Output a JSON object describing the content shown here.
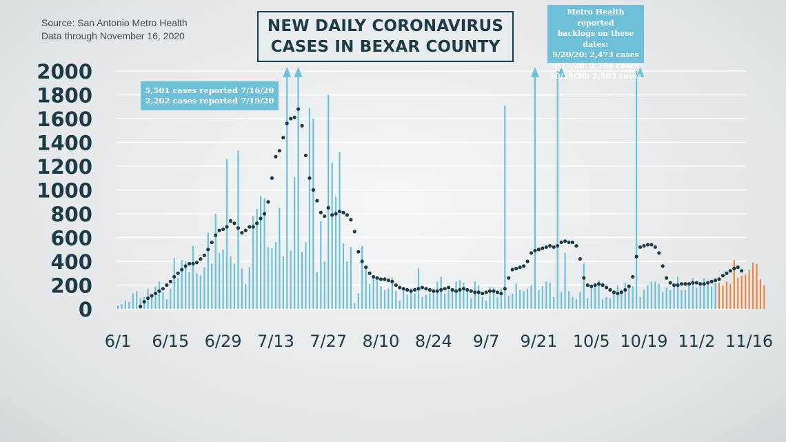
{
  "source_lines": [
    "Source: San Antonio Metro Health",
    "Data through November 16, 2020"
  ],
  "title_lines": [
    "NEW DAILY CORONAVIRUS",
    "CASES IN BEXAR COUNTY"
  ],
  "note_july_lines": [
    "5,501 cases reported 7/16/20",
    "2,202 cases reported 7/19/20"
  ],
  "note_backlog_lines": [
    "Metro Health reported",
    "backlogs on these dates:",
    "9/20/20:  2,473 cases",
    "9/27/20:  2,794 cases",
    "10/18/20:  2,583 cases"
  ],
  "colors": {
    "bar": "#6ec0d9",
    "recent_bar": "#f0843c",
    "avg_dots": "#1e3b45",
    "grid": "#ffffff",
    "text": "#1e3b45"
  },
  "chart_data": {
    "type": "bar",
    "title": "NEW DAILY CORONAVIRUS CASES IN BEXAR COUNTY",
    "xlabel": "",
    "ylabel": "",
    "ylim": [
      0,
      2000
    ],
    "y_ticks": [
      0,
      200,
      400,
      600,
      800,
      1000,
      1200,
      1400,
      1600,
      1800,
      2000
    ],
    "x_tick_labels": [
      "6/1",
      "6/15",
      "6/29",
      "7/13",
      "7/27",
      "8/10",
      "8/24",
      "9/7",
      "9/21",
      "10/5",
      "10/19",
      "11/2",
      "11/16"
    ],
    "x_tick_day_index": [
      0,
      14,
      28,
      42,
      56,
      70,
      84,
      98,
      112,
      126,
      140,
      154,
      168
    ],
    "start_date": "6/1",
    "grid": true,
    "daily_cases": [
      30,
      40,
      70,
      60,
      130,
      150,
      90,
      100,
      170,
      110,
      190,
      230,
      140,
      80,
      170,
      430,
      260,
      410,
      400,
      310,
      530,
      300,
      280,
      350,
      640,
      380,
      800,
      470,
      500,
      1260,
      440,
      380,
      1330,
      340,
      210,
      350,
      780,
      840,
      950,
      930,
      520,
      510,
      560,
      850,
      440,
      2000,
      490,
      1110,
      2000,
      480,
      560,
      1690,
      1600,
      310,
      740,
      400,
      1800,
      1230,
      940,
      1320,
      550,
      400,
      520,
      50,
      130,
      530,
      360,
      210,
      260,
      270,
      190,
      160,
      170,
      260,
      150,
      70,
      180,
      120,
      170,
      130,
      340,
      100,
      120,
      130,
      150,
      230,
      270,
      130,
      160,
      160,
      230,
      240,
      220,
      140,
      90,
      230,
      200,
      100,
      70,
      180,
      180,
      100,
      170,
      1710,
      110,
      130,
      210,
      160,
      150,
      170,
      200,
      2000,
      160,
      190,
      230,
      220,
      100,
      2000,
      140,
      470,
      150,
      100,
      80,
      140,
      380,
      90,
      190,
      210,
      240,
      80,
      100,
      90,
      140,
      200,
      160,
      220,
      200,
      190,
      2000,
      100,
      160,
      200,
      230,
      230,
      210,
      140,
      180,
      160,
      200,
      270,
      160,
      160,
      190,
      260,
      180,
      190,
      260,
      210,
      190,
      220,
      220,
      200,
      230,
      210,
      410,
      260,
      280,
      290,
      330,
      390,
      380,
      250,
      200
    ],
    "backlog_days": [
      45,
      48,
      111,
      118,
      139
    ],
    "recent_bars_start_index": 160,
    "moving_average": [
      20,
      60,
      90,
      110,
      130,
      150,
      170,
      200,
      230,
      270,
      300,
      330,
      360,
      380,
      380,
      390,
      420,
      450,
      500,
      560,
      620,
      660,
      670,
      690,
      740,
      720,
      680,
      640,
      660,
      690,
      690,
      720,
      760,
      800,
      900,
      1100,
      1280,
      1330,
      1440,
      1560,
      1600,
      1610,
      1680,
      1540,
      1290,
      1100,
      1000,
      910,
      810,
      780,
      850,
      790,
      800,
      820,
      810,
      790,
      750,
      650,
      480,
      400,
      350,
      300,
      270,
      260,
      250,
      250,
      240,
      230,
      200,
      180,
      170,
      160,
      150,
      160,
      170,
      180,
      170,
      160,
      150,
      150,
      160,
      170,
      180,
      160,
      150,
      160,
      170,
      160,
      150,
      140,
      140,
      130,
      140,
      150,
      150,
      140,
      130,
      170,
      260,
      330,
      340,
      350,
      360,
      400,
      470,
      490,
      500,
      510,
      520,
      530,
      520,
      530,
      560,
      570,
      560,
      560,
      530,
      420,
      260,
      200,
      190,
      200,
      210,
      200,
      180,
      160,
      140,
      130,
      140,
      160,
      190,
      270,
      440,
      520,
      530,
      540,
      540,
      520,
      470,
      360,
      260,
      220,
      200,
      200,
      210,
      210,
      210,
      220,
      220,
      210,
      210,
      220,
      230,
      240,
      250,
      280,
      300,
      320,
      340,
      350,
      320
    ]
  }
}
